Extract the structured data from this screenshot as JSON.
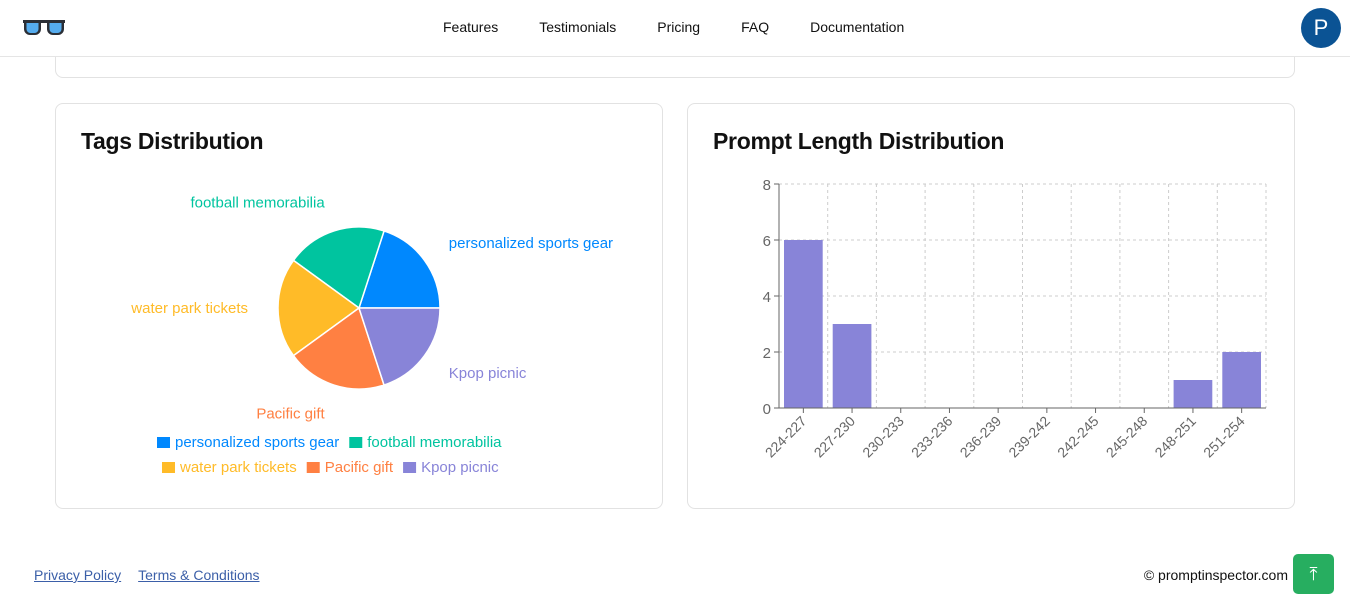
{
  "nav": {
    "links": [
      "Features",
      "Testimonials",
      "Pricing",
      "FAQ",
      "Documentation"
    ],
    "avatar_letter": "P"
  },
  "tags_card": {
    "title": "Tags Distribution"
  },
  "length_card": {
    "title": "Prompt Length Distribution"
  },
  "chart_data": [
    {
      "type": "pie",
      "title": "Tags Distribution",
      "categories": [
        "personalized sports gear",
        "football memorabilia",
        "water park tickets",
        "Pacific gift",
        "Kpop picnic"
      ],
      "values": [
        1,
        1,
        1,
        1,
        1
      ],
      "colors": [
        "#0088fe",
        "#00c49f",
        "#ffbb28",
        "#ff8042",
        "#8884d8"
      ],
      "legend": "bottom"
    },
    {
      "type": "bar",
      "title": "Prompt Length Distribution",
      "categories": [
        "224-227",
        "227-230",
        "230-233",
        "233-236",
        "236-239",
        "239-242",
        "242-245",
        "245-248",
        "248-251",
        "251-254"
      ],
      "values": [
        6,
        3,
        0,
        0,
        0,
        0,
        0,
        0,
        1,
        2
      ],
      "ylim": [
        0,
        8
      ],
      "yticks": [
        0,
        2,
        4,
        6,
        8
      ],
      "grid": true,
      "color": "#8884d8"
    }
  ],
  "footer": {
    "privacy": "Privacy Policy",
    "terms": "Terms & Conditions",
    "copyright": "© promptinspector.com",
    "to_top_icon": "arrow-up-to-top-icon"
  }
}
